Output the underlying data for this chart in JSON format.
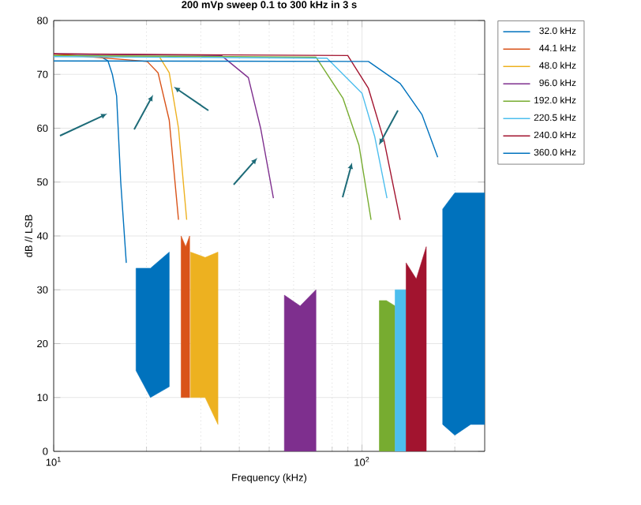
{
  "chart_data": {
    "type": "line",
    "title": "200 mVp sweep 0.1 to 300 kHz in 3 s",
    "xlabel": "Frequency (kHz)",
    "ylabel": "dB // LSB",
    "log": "x",
    "xlim": [
      10,
      250
    ],
    "ylim": [
      0,
      80
    ],
    "xticks": [
      {
        "value": 10,
        "label": "10$^{1}$"
      },
      {
        "value": 100,
        "label": "10$^{2}$"
      }
    ],
    "yticks": [
      0,
      10,
      20,
      30,
      40,
      50,
      60,
      70,
      80
    ],
    "grid": true,
    "legend": "top right",
    "series": [
      {
        "name": "32.0 kHz",
        "color": "#0072bd",
        "x": [
          10,
          14,
          15,
          15.5,
          16,
          16.5,
          17.2,
          18.5,
          20.6,
          23.7
        ],
        "values": [
          73.5,
          73.5,
          72.5,
          70,
          66,
          50,
          35,
          null,
          null,
          null
        ],
        "lower": [
          null,
          null,
          null,
          null,
          null,
          null,
          null,
          15,
          10,
          12
        ],
        "upper": [
          null,
          null,
          null,
          null,
          null,
          null,
          null,
          34,
          34,
          37
        ]
      },
      {
        "name": "44.1 kHz",
        "color": "#d95319",
        "x": [
          10,
          20.1,
          21.8,
          23.7,
          25.4,
          25.9,
          26.8,
          27.6
        ],
        "values": [
          73.8,
          72.4,
          70.3,
          61.5,
          43,
          null,
          null,
          null
        ],
        "lower": [
          null,
          null,
          null,
          null,
          null,
          10,
          10,
          10
        ],
        "upper": [
          null,
          null,
          null,
          null,
          null,
          40,
          38,
          40
        ]
      },
      {
        "name": "48.0 kHz",
        "color": "#edb120",
        "x": [
          10,
          22,
          23.7,
          25.4,
          27,
          27.8,
          31,
          34.1
        ],
        "values": [
          73.5,
          73.3,
          70.3,
          60,
          43,
          null,
          null,
          null
        ],
        "lower": [
          null,
          null,
          null,
          null,
          null,
          10,
          10,
          5
        ],
        "upper": [
          null,
          null,
          null,
          null,
          null,
          37,
          36,
          37
        ]
      },
      {
        "name": "96.0 kHz",
        "color": "#7e2f8e",
        "x": [
          10,
          35,
          42.8,
          46.9,
          51.6,
          56,
          63,
          70.9
        ],
        "values": [
          73.8,
          73.5,
          69.4,
          60,
          47,
          null,
          null,
          null
        ],
        "lower": [
          null,
          null,
          null,
          null,
          null,
          0,
          0,
          0
        ],
        "upper": [
          null,
          null,
          null,
          null,
          null,
          29,
          27,
          30
        ]
      },
      {
        "name": "192.0 kHz",
        "color": "#77ac30",
        "x": [
          10,
          70.9,
          86.7,
          97.8,
          107,
          113.8,
          120,
          128
        ],
        "values": [
          73.5,
          73.2,
          65.6,
          56.8,
          43,
          null,
          null,
          null
        ],
        "lower": [
          null,
          null,
          null,
          null,
          null,
          0,
          0,
          0
        ],
        "upper": [
          null,
          null,
          null,
          null,
          null,
          28,
          28,
          27
        ]
      },
      {
        "name": "220.5 kHz",
        "color": "#4dbeee",
        "x": [
          10,
          77,
          100,
          109.9,
          120.5,
          128,
          133,
          139
        ],
        "values": [
          73.3,
          73,
          66.5,
          58.5,
          47,
          null,
          null,
          null
        ],
        "lower": [
          null,
          null,
          null,
          null,
          null,
          0,
          0,
          0
        ],
        "upper": [
          null,
          null,
          null,
          null,
          null,
          30,
          30,
          30
        ]
      },
      {
        "name": "240.0 kHz",
        "color": "#a2142f",
        "x": [
          10,
          89.9,
          104.9,
          118,
          133,
          139,
          150,
          161.6
        ],
        "values": [
          73.8,
          73.5,
          67.4,
          57.6,
          43,
          null,
          null,
          null
        ],
        "lower": [
          null,
          null,
          null,
          null,
          null,
          0,
          0,
          0
        ],
        "upper": [
          null,
          null,
          null,
          null,
          null,
          35,
          32,
          38
        ]
      },
      {
        "name": "360.0 kHz",
        "color": "#0072bd",
        "x": [
          10,
          104.9,
          133,
          156.6,
          176,
          182.7,
          200,
          225,
          250
        ],
        "values": [
          72.5,
          72.4,
          68.3,
          62.5,
          54.6,
          null,
          null,
          null,
          null
        ],
        "lower": [
          null,
          null,
          null,
          null,
          null,
          5,
          3,
          5,
          5
        ],
        "upper": [
          null,
          null,
          null,
          null,
          null,
          45,
          48,
          48,
          48
        ]
      }
    ]
  }
}
